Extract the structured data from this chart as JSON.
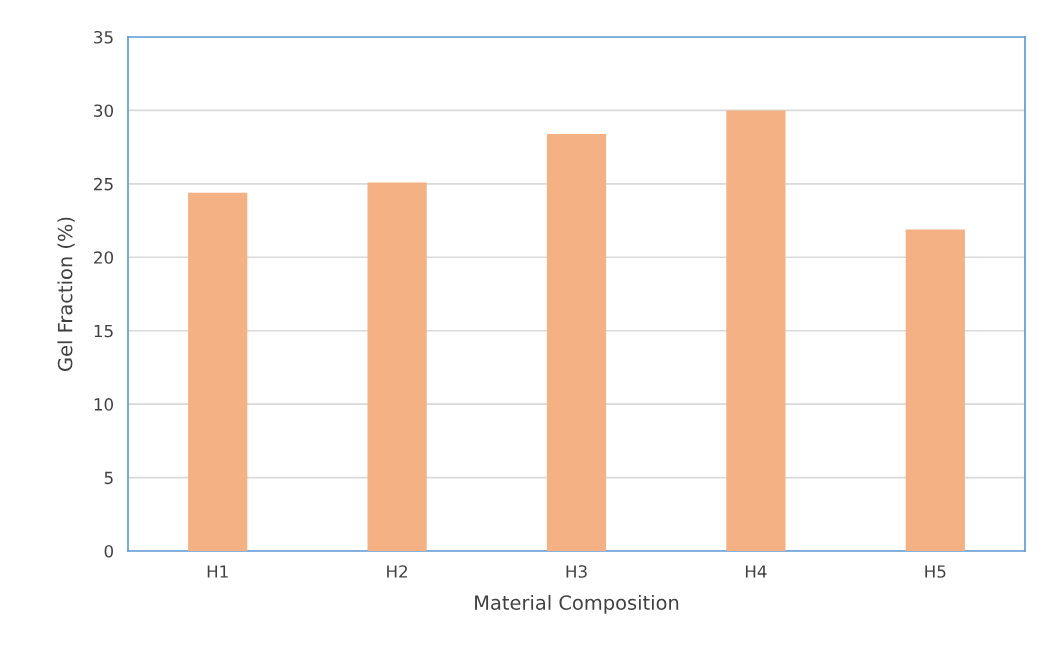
{
  "chart_data": {
    "type": "bar",
    "xlabel": "Material Composition",
    "ylabel": "Gel Fraction (%)",
    "categories": [
      "H1",
      "H2",
      "H3",
      "H4",
      "H5"
    ],
    "values": [
      24.4,
      25.1,
      28.4,
      30.0,
      21.9
    ],
    "color": "#f4b183",
    "ylim": [
      0,
      35
    ],
    "yticks": [
      0,
      5,
      10,
      15,
      20,
      25,
      30,
      35
    ],
    "grid": "y"
  }
}
